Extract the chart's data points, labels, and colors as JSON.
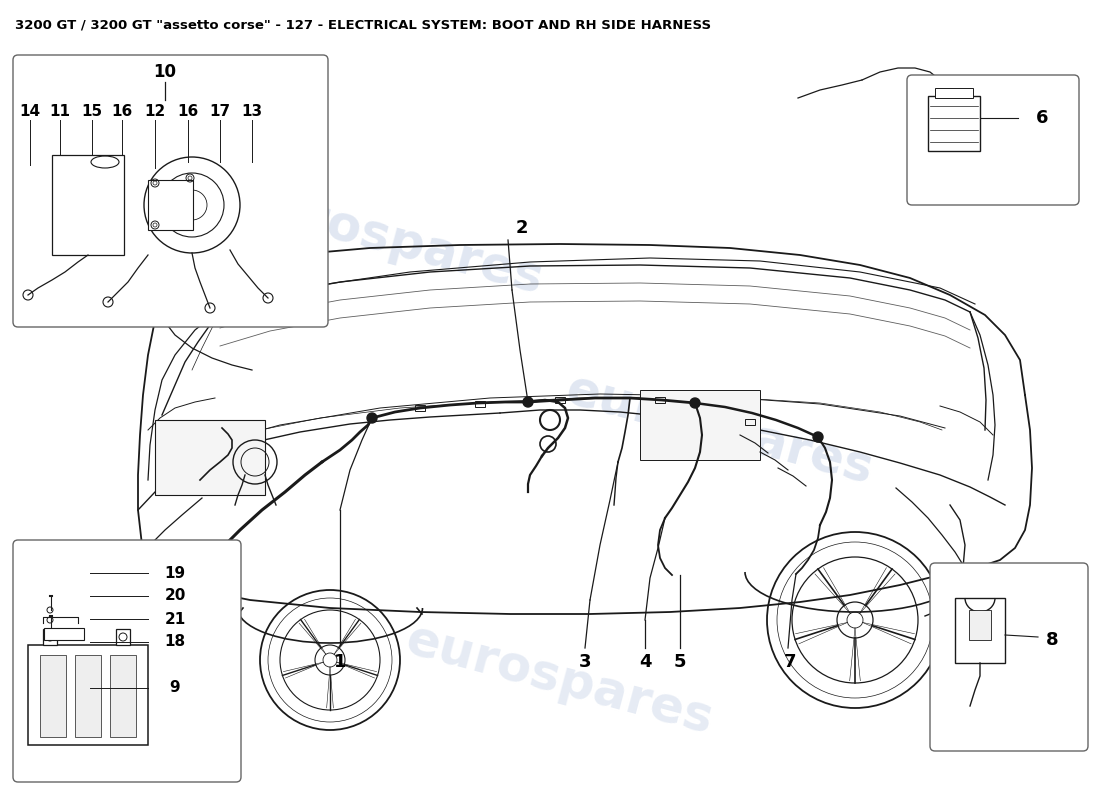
{
  "title": "3200 GT / 3200 GT \"assetto corse\" - 127 - ELECTRICAL SYSTEM: BOOT AND RH SIDE HARNESS",
  "title_fontsize": 9.5,
  "background_color": "#ffffff",
  "watermark_text": "eurospares",
  "watermark_color": "#c8d4e8",
  "line_color": "#1a1a1a",
  "box_line_color": "#666666",
  "text_color": "#000000",
  "fig_w": 11.0,
  "fig_h": 8.0,
  "dpi": 100
}
